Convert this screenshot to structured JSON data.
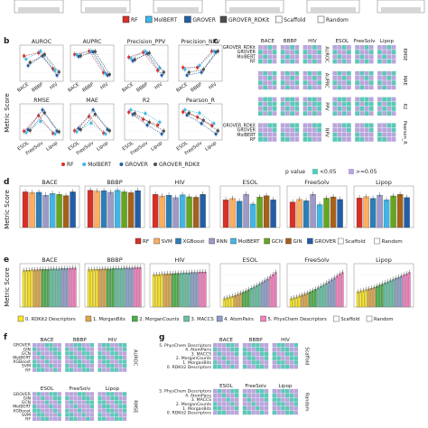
{
  "figure": {
    "panel_letters": [
      "b",
      "c",
      "d",
      "e",
      "f",
      "g"
    ],
    "shared_ylabel": "Metric Score"
  },
  "colors": {
    "RF": "#d73027",
    "MolBERT": "#41b6e6",
    "GROVER": "#225ea8",
    "GROVER_RDKit": "#4d4d4d",
    "Scaffold": "#ffffff",
    "Random": "#ffffff",
    "SVM": "#fdae61",
    "XGBoost": "#2c7fb8",
    "RNN": "#9e9ac8",
    "GIN": "#a6611a",
    "GCN": "#66a61e",
    "sig_lt": "#5ec8b8",
    "sig_ge": "#b9a6db",
    "desc0": "#fde725",
    "desc1": "#e0a84b",
    "desc2": "#4daf4a",
    "desc3": "#66c2a5",
    "desc4": "#8da0cb",
    "desc5": "#f781bf"
  },
  "legend_top": [
    "RF",
    "MolBERT",
    "GROVER",
    "GROVER_RDKit",
    "Scaffold",
    "Random"
  ],
  "legend_b": [
    "RF",
    "MolBERT",
    "GROVER",
    "GROVER_RDKit"
  ],
  "legend_pvalue": {
    "title": "p value",
    "items": [
      "<0.05",
      ">=0.05"
    ]
  },
  "legend_d": [
    "RF",
    "SVM",
    "XGBoost",
    "RNN",
    "MolBERT",
    "GCN",
    "GIN",
    "GROVER",
    "Scaffold",
    "Random"
  ],
  "legend_e": [
    "0. RDKit2 Descriptors",
    "1. MorganBits",
    "2. MorganCounts",
    "3. MACCS",
    "4. AtomPairs",
    "5. PhysChem Descriptors",
    "Scaffold",
    "Random"
  ],
  "chart_data": [
    {
      "panel": "b",
      "type": "scatter",
      "facets": [
        {
          "title": "AUROC",
          "x": [
            "BACE",
            "BBBP",
            "HIV"
          ],
          "series": [
            {
              "name": "RF",
              "values": [
                0.88,
                0.9,
                0.8
              ]
            },
            {
              "name": "MolBERT",
              "values": [
                0.86,
                0.91,
                0.79
              ]
            },
            {
              "name": "GROVER",
              "values": [
                0.82,
                0.88,
                0.76
              ]
            },
            {
              "name": "GROVER_RDKit",
              "values": [
                0.84,
                0.89,
                0.78
              ]
            }
          ]
        },
        {
          "title": "AUPRC",
          "x": [
            "BACE",
            "BBBP",
            "HIV"
          ],
          "series": [
            {
              "name": "RF",
              "values": [
                0.86,
                0.95,
                0.35
              ]
            },
            {
              "name": "MolBERT",
              "values": [
                0.85,
                0.95,
                0.33
              ]
            },
            {
              "name": "GROVER",
              "values": [
                0.8,
                0.93,
                0.28
              ]
            },
            {
              "name": "GROVER_RDKit",
              "values": [
                0.82,
                0.94,
                0.3
              ]
            }
          ]
        },
        {
          "title": "Precision_PPV",
          "x": [
            "BACE",
            "BBBP",
            "HIV"
          ],
          "series": [
            {
              "name": "RF",
              "values": [
                0.8,
                0.88,
                0.58
              ]
            },
            {
              "name": "MolBERT",
              "values": [
                0.78,
                0.9,
                0.62
              ]
            },
            {
              "name": "GROVER",
              "values": [
                0.74,
                0.86,
                0.5
              ]
            },
            {
              "name": "GROVER_RDKit",
              "values": [
                0.76,
                0.87,
                0.55
              ]
            }
          ]
        },
        {
          "title": "Precision_NPV",
          "x": [
            "BACE",
            "BBBP",
            "HIV"
          ],
          "series": [
            {
              "name": "RF",
              "values": [
                0.8,
                0.8,
                0.97
              ]
            },
            {
              "name": "MolBERT",
              "values": [
                0.78,
                0.82,
                0.97
              ]
            },
            {
              "name": "GROVER",
              "values": [
                0.72,
                0.75,
                0.96
              ]
            },
            {
              "name": "GROVER_RDKit",
              "values": [
                0.75,
                0.78,
                0.97
              ]
            }
          ]
        },
        {
          "title": "RMSE",
          "x": [
            "ESOL",
            "FreeSolv",
            "Lipop"
          ],
          "series": [
            {
              "name": "RF",
              "values": [
                0.9,
                2.0,
                0.75
              ]
            },
            {
              "name": "MolBERT",
              "values": [
                0.8,
                1.6,
                0.7
              ]
            },
            {
              "name": "GROVER",
              "values": [
                1.0,
                2.4,
                0.9
              ]
            },
            {
              "name": "GROVER_RDKit",
              "values": [
                0.95,
                2.2,
                0.85
              ]
            }
          ]
        },
        {
          "title": "MAE",
          "x": [
            "ESOL",
            "FreeSolv",
            "Lipop"
          ],
          "series": [
            {
              "name": "RF",
              "values": [
                0.65,
                1.3,
                0.55
              ]
            },
            {
              "name": "MolBERT",
              "values": [
                0.6,
                1.0,
                0.5
              ]
            },
            {
              "name": "GROVER",
              "values": [
                0.75,
                1.6,
                0.7
              ]
            },
            {
              "name": "GROVER_RDKit",
              "values": [
                0.7,
                1.4,
                0.65
              ]
            }
          ]
        },
        {
          "title": "R2",
          "x": [
            "ESOL",
            "FreeSolv",
            "Lipop"
          ],
          "series": [
            {
              "name": "RF",
              "values": [
                0.82,
                0.7,
                0.6
              ]
            },
            {
              "name": "MolBERT",
              "values": [
                0.86,
                0.8,
                0.65
              ]
            },
            {
              "name": "GROVER",
              "values": [
                0.78,
                0.6,
                0.45
              ]
            },
            {
              "name": "GROVER_RDKit",
              "values": [
                0.8,
                0.65,
                0.5
              ]
            }
          ]
        },
        {
          "title": "Pearson_R",
          "x": [
            "ESOL",
            "FreeSolv",
            "Lipop"
          ],
          "series": [
            {
              "name": "RF",
              "values": [
                0.91,
                0.86,
                0.78
              ]
            },
            {
              "name": "MolBERT",
              "values": [
                0.93,
                0.9,
                0.8
              ]
            },
            {
              "name": "GROVER",
              "values": [
                0.88,
                0.8,
                0.7
              ]
            },
            {
              "name": "GROVER_RDKit",
              "values": [
                0.9,
                0.83,
                0.73
              ]
            }
          ]
        }
      ]
    },
    {
      "panel": "c",
      "type": "heatmap",
      "row_labels": [
        "GROVER_RDKit",
        "GROVER",
        "MolBERT",
        "RF"
      ],
      "col_groups": [
        "BACE",
        "BBBP",
        "HIV",
        "ESOL",
        "FreeSolv",
        "Lipop"
      ],
      "row_metrics_left": [
        "AUROC",
        "AUPRC",
        "PPV",
        "NPV"
      ],
      "row_metrics_right": [
        "RMSE",
        "MAE",
        "R2",
        "Pearson_R"
      ],
      "values": "significance matrices (<0.05 vs >=0.05)"
    },
    {
      "panel": "d",
      "type": "bar",
      "facets": [
        {
          "title": "BACE",
          "values": [
            0.86,
            0.84,
            0.85,
            0.78,
            0.82,
            0.8,
            0.77,
            0.86
          ]
        },
        {
          "title": "BBBP",
          "values": [
            0.9,
            0.88,
            0.89,
            0.85,
            0.9,
            0.86,
            0.84,
            0.89
          ]
        },
        {
          "title": "HIV",
          "values": [
            0.8,
            0.76,
            0.78,
            0.72,
            0.79,
            0.74,
            0.73,
            0.8
          ]
        },
        {
          "title": "ESOL",
          "values": [
            1.0,
            1.05,
            0.95,
            1.2,
            0.85,
            1.1,
            1.15,
            1.0
          ]
        },
        {
          "title": "FreeSolv",
          "values": [
            2.0,
            2.2,
            2.1,
            2.6,
            1.8,
            2.3,
            2.4,
            2.2
          ]
        },
        {
          "title": "Lipop",
          "values": [
            0.75,
            0.78,
            0.74,
            0.82,
            0.7,
            0.8,
            0.84,
            0.76
          ]
        }
      ],
      "series_names": [
        "RF",
        "SVM",
        "XGBoost",
        "RNN",
        "MolBERT",
        "GCN",
        "GIN",
        "GROVER"
      ]
    },
    {
      "panel": "e",
      "type": "bar",
      "facets": [
        {
          "title": "BACE",
          "values": [
            0.84,
            0.85,
            0.85,
            0.86,
            0.86,
            0.86,
            0.87,
            0.87,
            0.87,
            0.87,
            0.88,
            0.88,
            0.88,
            0.88,
            0.89,
            0.89,
            0.89,
            0.89,
            0.9,
            0.9
          ]
        },
        {
          "title": "BBBP",
          "values": [
            0.86,
            0.86,
            0.87,
            0.87,
            0.87,
            0.88,
            0.88,
            0.88,
            0.88,
            0.89,
            0.89,
            0.89,
            0.89,
            0.9,
            0.9,
            0.9,
            0.9,
            0.91,
            0.91,
            0.91
          ]
        },
        {
          "title": "HIV",
          "values": [
            0.74,
            0.75,
            0.75,
            0.76,
            0.76,
            0.77,
            0.77,
            0.77,
            0.78,
            0.78,
            0.78,
            0.79,
            0.79,
            0.79,
            0.8,
            0.8,
            0.8,
            0.81,
            0.81,
            0.81
          ]
        },
        {
          "title": "ESOL",
          "values": [
            0.3,
            0.33,
            0.36,
            0.39,
            0.42,
            0.46,
            0.5,
            0.54,
            0.58,
            0.63,
            0.68,
            0.73,
            0.78,
            0.84,
            0.9,
            0.96,
            1.02,
            1.1,
            1.18,
            1.26
          ]
        },
        {
          "title": "FreeSolv",
          "values": [
            0.5,
            0.55,
            0.6,
            0.66,
            0.72,
            0.78,
            0.85,
            0.92,
            1.0,
            1.08,
            1.16,
            1.25,
            1.34,
            1.44,
            1.54,
            1.65,
            1.76,
            1.88,
            2.0,
            2.1
          ]
        },
        {
          "title": "Lipop",
          "values": [
            0.4,
            0.42,
            0.44,
            0.46,
            0.48,
            0.5,
            0.52,
            0.55,
            0.58,
            0.61,
            0.64,
            0.67,
            0.7,
            0.73,
            0.76,
            0.79,
            0.82,
            0.85,
            0.88,
            0.92
          ]
        }
      ]
    },
    {
      "panel": "f",
      "type": "heatmap",
      "row_labels": [
        "GROVER",
        "GIN",
        "GCN",
        "MolBERT",
        "XGBoost",
        "SVM",
        "RF"
      ],
      "facets": [
        "BACE",
        "BBBP",
        "HIV",
        "ESOL",
        "FreeSolv",
        "Lipop"
      ],
      "side_labels": [
        "AUROC",
        "RMSE"
      ]
    },
    {
      "panel": "g",
      "type": "heatmap",
      "row_labels": [
        "5. PhysChem Descriptors",
        "4. AtomPairs",
        "3. MACCS",
        "2. MorganCounts",
        "1. MorganBits",
        "0. RDKit2 Descriptors"
      ],
      "facets": [
        "BACE",
        "BBBP",
        "HIV",
        "ESOL",
        "FreeSolv",
        "Lipop"
      ],
      "side_labels": [
        "Scaffold",
        "Random"
      ]
    }
  ]
}
